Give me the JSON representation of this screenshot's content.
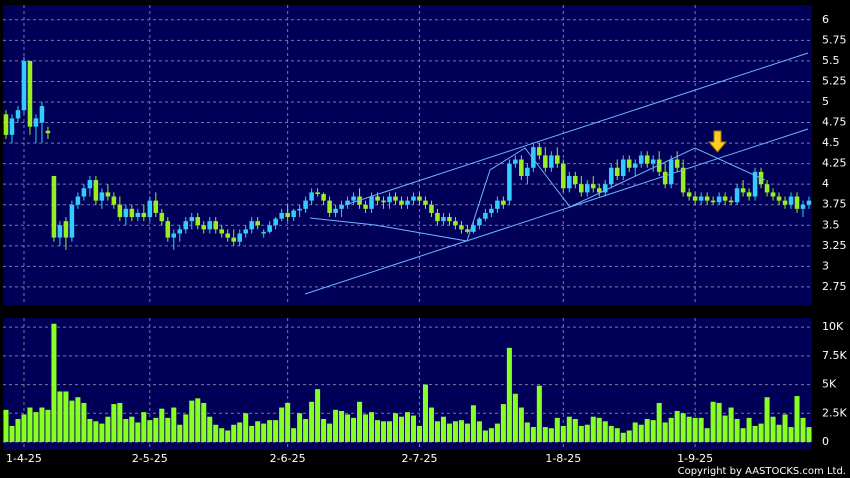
{
  "chart_data": {
    "type": "candlestick",
    "copyright": "Copyright by AASTOCKS.com Ltd.",
    "up_color": "#33ccff",
    "down_color": "#99ee22",
    "volume_color": "#88ff22",
    "grid": true,
    "categories": [
      null,
      null,
      null,
      "1-4-25",
      null,
      null,
      null,
      null,
      null,
      null,
      null,
      null,
      null,
      null,
      null,
      null,
      null,
      null,
      null,
      null,
      null,
      null,
      null,
      null,
      "2-5-25",
      null,
      null,
      null,
      null,
      null,
      null,
      null,
      null,
      null,
      null,
      null,
      null,
      null,
      null,
      null,
      null,
      null,
      null,
      null,
      null,
      null,
      null,
      "2-6-25",
      null,
      null,
      null,
      null,
      null,
      null,
      null,
      null,
      null,
      null,
      null,
      null,
      null,
      null,
      null,
      null,
      null,
      null,
      null,
      null,
      null,
      "2-7-25",
      null,
      null,
      null,
      null,
      null,
      null,
      null,
      null,
      null,
      null,
      null,
      null,
      null,
      null,
      null,
      null,
      null,
      null,
      null,
      null,
      null,
      null,
      null,
      "1-8-25",
      null,
      null,
      null,
      null,
      null,
      null,
      null,
      null,
      null,
      null,
      null,
      null,
      null,
      null,
      null,
      null,
      null,
      null,
      null,
      null,
      null,
      "1-9-25",
      null,
      null,
      null,
      null,
      null,
      null,
      null,
      null,
      null,
      null,
      null,
      null,
      null,
      null,
      null,
      null,
      null,
      null,
      null
    ],
    "ohlc": [
      [
        4.85,
        4.9,
        4.55,
        4.6
      ],
      [
        4.6,
        4.85,
        4.5,
        4.8
      ],
      [
        4.8,
        4.95,
        4.75,
        4.9
      ],
      [
        4.9,
        5.55,
        4.85,
        5.5
      ],
      [
        5.5,
        5.5,
        4.6,
        4.7
      ],
      [
        4.7,
        4.85,
        4.5,
        4.8
      ],
      [
        4.75,
        5.0,
        4.5,
        4.95
      ],
      [
        4.65,
        4.7,
        4.55,
        4.62
      ],
      [
        4.1,
        4.1,
        3.3,
        3.35
      ],
      [
        3.35,
        3.55,
        3.25,
        3.5
      ],
      [
        3.55,
        3.6,
        3.2,
        3.35
      ],
      [
        3.35,
        3.8,
        3.3,
        3.75
      ],
      [
        3.75,
        3.9,
        3.7,
        3.85
      ],
      [
        3.85,
        4.0,
        3.8,
        3.95
      ],
      [
        3.95,
        4.1,
        3.85,
        4.05
      ],
      [
        4.05,
        4.1,
        3.75,
        3.8
      ],
      [
        3.8,
        3.95,
        3.7,
        3.9
      ],
      [
        3.9,
        4.0,
        3.8,
        3.85
      ],
      [
        3.85,
        3.9,
        3.7,
        3.75
      ],
      [
        3.75,
        3.85,
        3.55,
        3.6
      ],
      [
        3.6,
        3.75,
        3.5,
        3.7
      ],
      [
        3.7,
        3.75,
        3.55,
        3.6
      ],
      [
        3.6,
        3.7,
        3.55,
        3.65
      ],
      [
        3.65,
        3.75,
        3.55,
        3.6
      ],
      [
        3.6,
        3.85,
        3.55,
        3.8
      ],
      [
        3.8,
        3.9,
        3.6,
        3.65
      ],
      [
        3.65,
        3.7,
        3.5,
        3.55
      ],
      [
        3.55,
        3.6,
        3.3,
        3.35
      ],
      [
        3.35,
        3.45,
        3.2,
        3.4
      ],
      [
        3.4,
        3.5,
        3.3,
        3.45
      ],
      [
        3.45,
        3.6,
        3.4,
        3.55
      ],
      [
        3.55,
        3.65,
        3.45,
        3.6
      ],
      [
        3.6,
        3.65,
        3.45,
        3.5
      ],
      [
        3.5,
        3.55,
        3.4,
        3.45
      ],
      [
        3.45,
        3.6,
        3.4,
        3.55
      ],
      [
        3.55,
        3.6,
        3.4,
        3.45
      ],
      [
        3.45,
        3.5,
        3.35,
        3.4
      ],
      [
        3.4,
        3.45,
        3.3,
        3.35
      ],
      [
        3.35,
        3.45,
        3.25,
        3.3
      ],
      [
        3.3,
        3.45,
        3.25,
        3.4
      ],
      [
        3.4,
        3.5,
        3.35,
        3.45
      ],
      [
        3.45,
        3.6,
        3.4,
        3.55
      ],
      [
        3.55,
        3.6,
        3.45,
        3.5
      ],
      [
        3.4,
        3.45,
        3.35,
        3.42
      ],
      [
        3.42,
        3.55,
        3.4,
        3.5
      ],
      [
        3.5,
        3.6,
        3.45,
        3.58
      ],
      [
        3.58,
        3.7,
        3.55,
        3.65
      ],
      [
        3.65,
        3.75,
        3.55,
        3.6
      ],
      [
        3.6,
        3.7,
        3.55,
        3.68
      ],
      [
        3.68,
        3.75,
        3.6,
        3.7
      ],
      [
        3.7,
        3.85,
        3.65,
        3.8
      ],
      [
        3.8,
        3.95,
        3.75,
        3.9
      ],
      [
        3.9,
        3.95,
        3.85,
        3.88
      ],
      [
        3.88,
        3.9,
        3.75,
        3.8
      ],
      [
        3.8,
        3.85,
        3.6,
        3.65
      ],
      [
        3.65,
        3.75,
        3.6,
        3.7
      ],
      [
        3.7,
        3.8,
        3.6,
        3.75
      ],
      [
        3.75,
        3.85,
        3.7,
        3.8
      ],
      [
        3.8,
        3.9,
        3.75,
        3.85
      ],
      [
        3.85,
        3.95,
        3.7,
        3.75
      ],
      [
        3.75,
        3.8,
        3.65,
        3.7
      ],
      [
        3.7,
        3.9,
        3.65,
        3.85
      ],
      [
        3.85,
        3.9,
        3.75,
        3.8
      ],
      [
        3.8,
        3.85,
        3.7,
        3.78
      ],
      [
        3.78,
        3.9,
        3.7,
        3.85
      ],
      [
        3.85,
        3.9,
        3.75,
        3.8
      ],
      [
        3.8,
        3.85,
        3.7,
        3.75
      ],
      [
        3.75,
        3.85,
        3.7,
        3.8
      ],
      [
        3.8,
        3.9,
        3.75,
        3.85
      ],
      [
        3.85,
        3.9,
        3.75,
        3.8
      ],
      [
        3.8,
        3.85,
        3.7,
        3.75
      ],
      [
        3.75,
        3.8,
        3.6,
        3.65
      ],
      [
        3.65,
        3.7,
        3.5,
        3.55
      ],
      [
        3.55,
        3.65,
        3.5,
        3.6
      ],
      [
        3.6,
        3.65,
        3.5,
        3.55
      ],
      [
        3.55,
        3.6,
        3.45,
        3.5
      ],
      [
        3.5,
        3.55,
        3.4,
        3.45
      ],
      [
        3.45,
        3.5,
        3.4,
        3.42
      ],
      [
        3.42,
        3.55,
        3.4,
        3.5
      ],
      [
        3.5,
        3.6,
        3.45,
        3.58
      ],
      [
        3.58,
        3.7,
        3.55,
        3.65
      ],
      [
        3.65,
        3.75,
        3.6,
        3.7
      ],
      [
        3.7,
        3.85,
        3.65,
        3.8
      ],
      [
        3.8,
        3.85,
        3.7,
        3.75
      ],
      [
        3.8,
        4.3,
        3.75,
        4.25
      ],
      [
        4.25,
        4.35,
        4.2,
        4.3
      ],
      [
        4.3,
        4.35,
        4.05,
        4.1
      ],
      [
        4.1,
        4.25,
        4.0,
        4.2
      ],
      [
        4.2,
        4.5,
        4.15,
        4.45
      ],
      [
        4.45,
        4.5,
        4.3,
        4.35
      ],
      [
        4.35,
        4.45,
        4.15,
        4.2
      ],
      [
        4.2,
        4.4,
        4.15,
        4.35
      ],
      [
        4.35,
        4.45,
        4.2,
        4.25
      ],
      [
        4.25,
        4.3,
        3.9,
        3.95
      ],
      [
        3.95,
        4.15,
        3.9,
        4.1
      ],
      [
        4.1,
        4.15,
        3.95,
        4.0
      ],
      [
        4.0,
        4.1,
        3.85,
        3.9
      ],
      [
        3.9,
        4.05,
        3.85,
        4.0
      ],
      [
        4.0,
        4.1,
        3.9,
        3.95
      ],
      [
        3.95,
        4.0,
        3.85,
        3.9
      ],
      [
        3.9,
        4.05,
        3.85,
        4.0
      ],
      [
        4.0,
        4.25,
        3.95,
        4.2
      ],
      [
        4.2,
        4.3,
        4.05,
        4.1
      ],
      [
        4.1,
        4.35,
        4.05,
        4.3
      ],
      [
        4.3,
        4.35,
        4.15,
        4.2
      ],
      [
        4.2,
        4.3,
        4.1,
        4.25
      ],
      [
        4.25,
        4.4,
        4.2,
        4.35
      ],
      [
        4.35,
        4.4,
        4.2,
        4.25
      ],
      [
        4.25,
        4.35,
        4.15,
        4.3
      ],
      [
        4.3,
        4.4,
        4.1,
        4.15
      ],
      [
        4.15,
        4.25,
        3.95,
        4.0
      ],
      [
        4.0,
        4.35,
        3.95,
        4.3
      ],
      [
        4.3,
        4.4,
        4.15,
        4.2
      ],
      [
        4.2,
        4.3,
        3.85,
        3.9
      ],
      [
        3.9,
        3.95,
        3.8,
        3.85
      ],
      [
        3.85,
        3.9,
        3.75,
        3.8
      ],
      [
        3.8,
        3.9,
        3.75,
        3.85
      ],
      [
        3.85,
        3.9,
        3.75,
        3.8
      ],
      [
        3.8,
        3.85,
        3.75,
        3.78
      ],
      [
        3.78,
        3.9,
        3.75,
        3.85
      ],
      [
        3.85,
        3.9,
        3.75,
        3.8
      ],
      [
        3.8,
        3.85,
        3.75,
        3.78
      ],
      [
        3.78,
        4.0,
        3.75,
        3.95
      ],
      [
        3.95,
        4.05,
        3.85,
        3.9
      ],
      [
        3.9,
        3.95,
        3.8,
        3.85
      ],
      [
        3.85,
        4.2,
        3.8,
        4.15
      ],
      [
        4.15,
        4.2,
        3.95,
        4.0
      ],
      [
        4.0,
        4.05,
        3.85,
        3.9
      ],
      [
        3.9,
        3.95,
        3.8,
        3.85
      ],
      [
        3.85,
        3.9,
        3.75,
        3.8
      ],
      [
        3.8,
        3.85,
        3.7,
        3.75
      ],
      [
        3.75,
        3.9,
        3.7,
        3.85
      ],
      [
        3.85,
        3.9,
        3.65,
        3.7
      ],
      [
        3.7,
        3.8,
        3.6,
        3.75
      ],
      [
        3.75,
        3.85,
        3.7,
        3.8
      ]
    ],
    "volume": [
      2800,
      1400,
      2000,
      2400,
      3000,
      2600,
      3000,
      2800,
      10300,
      4400,
      4400,
      3600,
      3900,
      3400,
      2000,
      1800,
      1600,
      2200,
      3300,
      3400,
      2000,
      2200,
      1700,
      2600,
      1900,
      2100,
      2900,
      2100,
      3000,
      1500,
      2400,
      3600,
      3800,
      3400,
      2200,
      1500,
      1200,
      1000,
      1500,
      1700,
      2500,
      1400,
      1800,
      1600,
      1900,
      1900,
      3000,
      3400,
      1200,
      2500,
      2000,
      3500,
      4600,
      2000,
      1600,
      2800,
      2700,
      2400,
      2100,
      3500,
      2400,
      2600,
      1900,
      1800,
      1800,
      2500,
      2200,
      2600,
      2300,
      1400,
      5000,
      3000,
      1800,
      2200,
      1600,
      1800,
      1900,
      1600,
      3200,
      1800,
      1000,
      1200,
      1600,
      3300,
      8200,
      4200,
      3000,
      1700,
      1300,
      4900,
      1300,
      1200,
      2100,
      1400,
      2200,
      2000,
      1400,
      1500,
      2200,
      2100,
      1800,
      1400,
      1200,
      800,
      1000,
      1700,
      1500,
      2000,
      1900,
      3400,
      1700,
      2100,
      2700,
      2500,
      2200,
      2100,
      2100,
      1200,
      3500,
      3400,
      2300,
      3000,
      2000,
      1200,
      2100,
      1400,
      1600,
      3900,
      2200,
      1500,
      2400,
      1300,
      4000,
      2100,
      1300
    ],
    "ylim": [
      2.53,
      6.18
    ],
    "yticks": [
      2.75,
      3,
      3.25,
      3.5,
      3.75,
      4,
      4.25,
      4.5,
      4.75,
      5,
      5.25,
      5.5,
      5.75,
      6
    ],
    "y2lim": [
      -700,
      10800
    ],
    "y2ticks": [
      0,
      {
        "value": 2500,
        "label": "2.5K"
      },
      {
        "value": 5000,
        "label": "5K"
      },
      {
        "value": 7500,
        "label": "7.5K"
      },
      {
        "value": 10000,
        "label": "10K"
      }
    ]
  }
}
